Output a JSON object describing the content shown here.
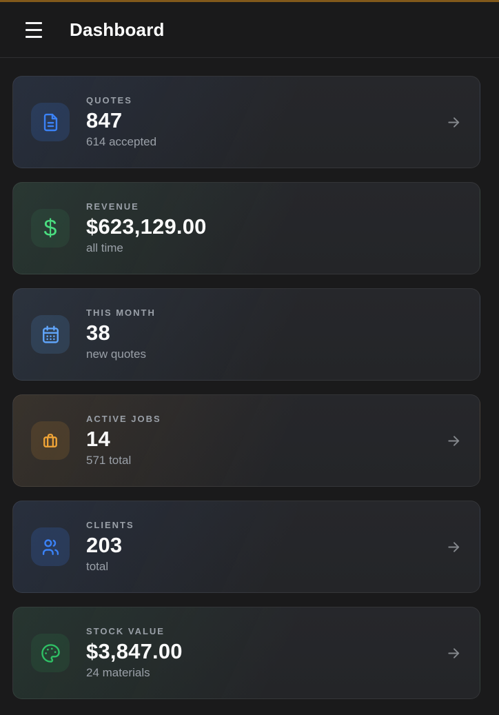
{
  "accent_colors": {
    "top_bar": "#82591b",
    "header_bg": "#1a1a1b",
    "card_base": "#242528",
    "label_text": "#9aa0a8",
    "value_text": "#fafafa",
    "arrow": "#85888d"
  },
  "header": {
    "title": "Dashboard",
    "menu_icon": "hamburger-menu-icon"
  },
  "cards": [
    {
      "label": "QUOTES",
      "value": "847",
      "sub": "614 accepted",
      "icon": "file-text-icon",
      "accent": "#3b82f6",
      "has_arrow": true
    },
    {
      "label": "REVENUE",
      "value": "$623,129.00",
      "sub": "all time",
      "icon": "dollar-icon",
      "accent": "#4ade80",
      "has_arrow": false
    },
    {
      "label": "THIS MONTH",
      "value": "38",
      "sub": "new quotes",
      "icon": "calendar-icon",
      "accent": "#60a5fa",
      "has_arrow": false
    },
    {
      "label": "ACTIVE JOBS",
      "value": "14",
      "sub": "571 total",
      "icon": "briefcase-icon",
      "accent": "#f0a437",
      "has_arrow": true
    },
    {
      "label": "CLIENTS",
      "value": "203",
      "sub": "total",
      "icon": "users-icon",
      "accent": "#3b82f6",
      "has_arrow": true
    },
    {
      "label": "STOCK VALUE",
      "value": "$3,847.00",
      "sub": "24 materials",
      "icon": "palette-icon",
      "accent": "#2fc065",
      "has_arrow": true
    }
  ]
}
